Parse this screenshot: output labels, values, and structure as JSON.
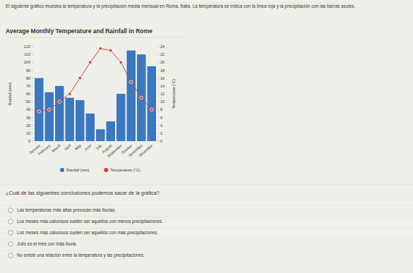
{
  "intro": "El siguiente gráfico muestra la temperatura y la precipitación media mensual en Roma, Italia. La temperatura se indica con la línea roja y la precipitación con las barras azules.",
  "chart_data": {
    "type": "bar",
    "title": "Average Monthly Temperature and Rainfall in Rome",
    "categories": [
      "January",
      "February",
      "March",
      "April",
      "May",
      "June",
      "July",
      "August",
      "September",
      "October",
      "November",
      "December"
    ],
    "series": [
      {
        "name": "Rainfall (mm)",
        "type": "bar",
        "color": "#3a78c2",
        "values": [
          80,
          62,
          70,
          55,
          52,
          35,
          15,
          25,
          60,
          115,
          110,
          95
        ]
      },
      {
        "name": "Temperature (°C)",
        "type": "line",
        "axis": "y2",
        "color": "#d63b3b",
        "marker": "circle",
        "values": [
          7.5,
          8,
          10,
          12,
          16,
          20,
          23.5,
          23,
          20,
          15,
          11,
          8
        ]
      }
    ],
    "ylabel": "Rainfall (mm)",
    "y2label": "Temperature (°C)",
    "ylim": [
      0,
      120
    ],
    "yticks": [
      0,
      10,
      20,
      30,
      40,
      50,
      60,
      70,
      80,
      90,
      100,
      110,
      120
    ],
    "y2lim": [
      0,
      24
    ],
    "y2ticks": [
      0,
      2,
      4,
      6,
      8,
      10,
      12,
      14,
      16,
      18,
      20,
      22,
      24
    ],
    "grid": false,
    "legend": "bottom"
  },
  "question": "¿Cuál de las siguientes conclusiones podemos sacar de la gráfica?",
  "options": [
    "Las temperaturas más altas provocan más lluvias.",
    "Los meses más calurosos suelen ser aquellos con menos precipitaciones.",
    "Los meses más calurosos suelen ser aquellos con más precipitaciones.",
    "Julio es el mes con más lluvia.",
    "No existe una relación entre la temperatura y las precipitaciones."
  ]
}
